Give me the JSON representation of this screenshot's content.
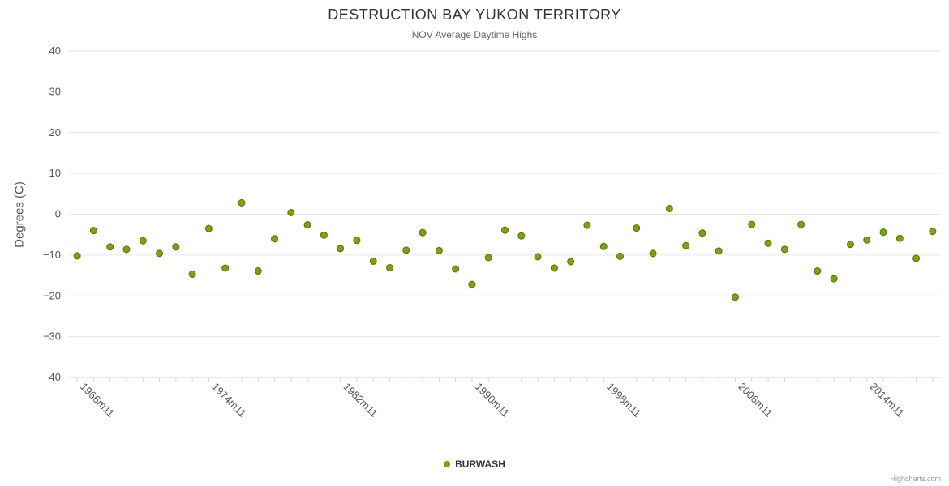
{
  "chart_data": {
    "type": "scatter",
    "title": "DESTRUCTION BAY YUKON TERRITORY",
    "subtitle": "NOV Average Daytime Highs",
    "ylabel": "Degrees (C)",
    "ylim": [
      -40,
      40
    ],
    "ytick_step": 10,
    "ytick_labels": [
      "40",
      "30",
      "20",
      "10",
      "0",
      "−10",
      "−20",
      "−30",
      "−40"
    ],
    "grid": true,
    "legend_position": "bottom",
    "x_tick_labels": [
      "1966m11",
      "1974m11",
      "1982m11",
      "1990m11",
      "1998m11",
      "2006m11",
      "2014m11"
    ],
    "x_label_rotation": 45,
    "x_range": [
      1966,
      2018
    ],
    "series": [
      {
        "name": "BURWASH",
        "color": "#77A50B",
        "marker_stroke": "#547307",
        "x": [
          1966,
          1967,
          1968,
          1969,
          1970,
          1971,
          1972,
          1973,
          1974,
          1975,
          1976,
          1977,
          1978,
          1979,
          1980,
          1981,
          1982,
          1983,
          1984,
          1985,
          1986,
          1987,
          1988,
          1989,
          1990,
          1991,
          1992,
          1993,
          1994,
          1995,
          1996,
          1997,
          1998,
          1999,
          2000,
          2001,
          2002,
          2003,
          2004,
          2005,
          2006,
          2007,
          2008,
          2009,
          2010,
          2011,
          2012,
          2013,
          2014,
          2015,
          2016,
          2017,
          2018
        ],
        "values": [
          -10.2,
          -4.0,
          -8.0,
          -8.6,
          -6.5,
          -9.6,
          -8.0,
          -14.7,
          -3.5,
          -13.2,
          2.8,
          -13.9,
          -6.0,
          0.4,
          -2.6,
          -5.1,
          -8.4,
          -6.4,
          -11.5,
          -13.1,
          -8.8,
          -4.5,
          -8.9,
          -13.4,
          -17.2,
          -10.6,
          -3.9,
          -5.3,
          -10.4,
          -13.2,
          -11.6,
          -2.7,
          -7.9,
          -10.3,
          -3.4,
          -9.6,
          1.4,
          -7.7,
          -4.6,
          -9.0,
          -20.3,
          -2.5,
          -7.1,
          -8.6,
          -2.5,
          -13.9,
          -15.8,
          -7.4,
          -6.3,
          -4.4,
          -5.9,
          -10.8,
          -4.2
        ]
      }
    ],
    "credit": "Highcharts.com",
    "colors": {
      "grid": "#e6e6e6",
      "axis_line": "#ccd6eb",
      "tick_label": "#555555"
    }
  }
}
